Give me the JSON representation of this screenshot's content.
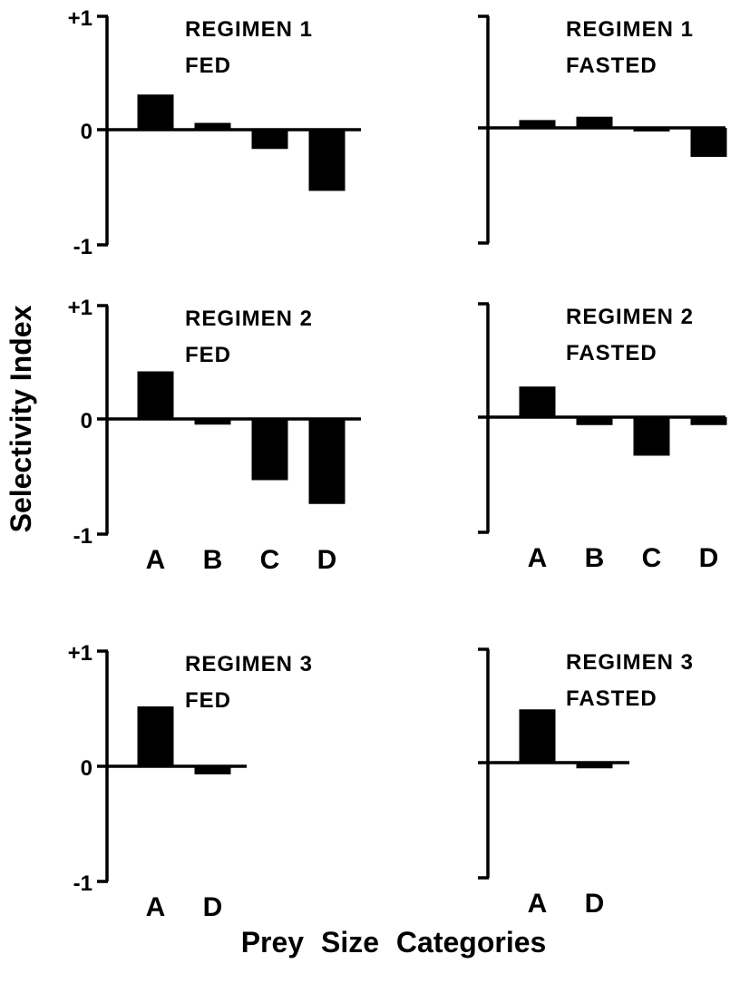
{
  "y_axis_label": "Selectivity Index",
  "x_axis_label": "Prey Size Categories",
  "chart_data": [
    {
      "type": "bar",
      "title": [
        "REGIMEN 1",
        "FED"
      ],
      "categories": [
        "A",
        "B",
        "C",
        "D"
      ],
      "show_category_labels": false,
      "values": [
        0.31,
        0.06,
        -0.17,
        -0.54
      ],
      "ylim": [
        -1,
        1
      ],
      "yticks": [
        "+1",
        "0",
        "-1"
      ],
      "show_ytick_labels": true
    },
    {
      "type": "bar",
      "title": [
        "REGIMEN 1",
        "FASTED"
      ],
      "categories": [
        "A",
        "B",
        "C",
        "D"
      ],
      "show_category_labels": false,
      "values": [
        0.07,
        0.1,
        -0.03,
        -0.26
      ],
      "ylim": [
        -1,
        1
      ],
      "yticks": [
        "+1",
        "0",
        "-1"
      ],
      "show_ytick_labels": false
    },
    {
      "type": "bar",
      "title": [
        "REGIMEN 2",
        "FED"
      ],
      "categories": [
        "A",
        "B",
        "C",
        "D"
      ],
      "show_category_labels": true,
      "values": [
        0.42,
        -0.05,
        -0.54,
        -0.75
      ],
      "ylim": [
        -1,
        1
      ],
      "yticks": [
        "+1",
        "0",
        "-1"
      ],
      "show_ytick_labels": true
    },
    {
      "type": "bar",
      "title": [
        "REGIMEN 2",
        "FASTED"
      ],
      "categories": [
        "A",
        "B",
        "C",
        "D"
      ],
      "show_category_labels": true,
      "values": [
        0.27,
        -0.07,
        -0.34,
        -0.07
      ],
      "ylim": [
        -1,
        1
      ],
      "yticks": [
        "+1",
        "0",
        "-1"
      ],
      "show_ytick_labels": false
    },
    {
      "type": "bar",
      "title": [
        "REGIMEN 3",
        "FED"
      ],
      "categories": [
        "A",
        "D"
      ],
      "show_category_labels": true,
      "values": [
        0.52,
        -0.07
      ],
      "ylim": [
        -1,
        1
      ],
      "yticks": [
        "+1",
        "0",
        "-1"
      ],
      "show_ytick_labels": true
    },
    {
      "type": "bar",
      "title": [
        "REGIMEN 3",
        "FASTED"
      ],
      "categories": [
        "A",
        "D"
      ],
      "show_category_labels": true,
      "values": [
        0.47,
        -0.05
      ],
      "ylim": [
        -1,
        1
      ],
      "yticks": [
        "+1",
        "0",
        "-1"
      ],
      "show_ytick_labels": false
    }
  ]
}
